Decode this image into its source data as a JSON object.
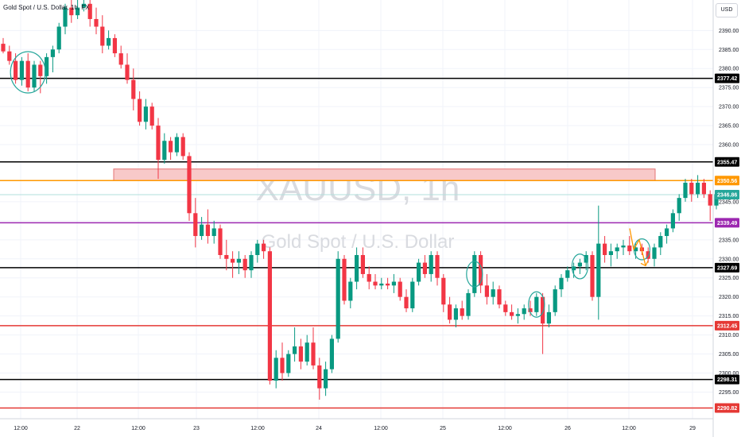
{
  "header": {
    "symbol_line": "Gold Spot / U.S. Dollar, 1h, FX"
  },
  "currency_button": "USD",
  "watermark": {
    "ticker": "XAUUSD, 1h",
    "name": "Gold Spot / U.S. Dollar"
  },
  "chart_data": {
    "type": "candlestick",
    "ylim": [
      2288,
      2398
    ],
    "y_ticks": [
      2295,
      2300,
      2305,
      2310,
      2315,
      2320,
      2325,
      2330,
      2335,
      2340,
      2345,
      2360,
      2365,
      2370,
      2375,
      2380,
      2385,
      2390
    ],
    "x_ticks": [
      "12:00",
      "22",
      "12:00",
      "23",
      "12:00",
      "24",
      "12:00",
      "25",
      "12:00",
      "26",
      "12:00",
      "29"
    ],
    "up_color": "#089981",
    "down_color": "#f23645",
    "candles": [
      [
        2386.5,
        2388.0,
        2384.0,
        2384.5
      ],
      [
        2384.5,
        2386.0,
        2381.0,
        2382.0
      ],
      [
        2382.0,
        2384.0,
        2376.0,
        2377.0
      ],
      [
        2377.0,
        2383.0,
        2375.5,
        2382.0
      ],
      [
        2382.0,
        2384.0,
        2374.0,
        2375.0
      ],
      [
        2375.0,
        2382.0,
        2374.0,
        2381.0
      ],
      [
        2381.0,
        2382.0,
        2373.5,
        2378.0
      ],
      [
        2378.0,
        2384.0,
        2376.0,
        2383.0
      ],
      [
        2383.0,
        2386.0,
        2379.0,
        2385.0
      ],
      [
        2385.0,
        2392.0,
        2384.0,
        2391.0
      ],
      [
        2391.0,
        2397.0,
        2389.0,
        2396.0
      ],
      [
        2396.0,
        2398.0,
        2392.0,
        2394.0
      ],
      [
        2394.0,
        2398.0,
        2393.0,
        2396.0
      ],
      [
        2396.0,
        2398.0,
        2395.0,
        2397.0
      ],
      [
        2397.0,
        2398.0,
        2391.0,
        2393.0
      ],
      [
        2393.0,
        2396.0,
        2389.0,
        2391.0
      ],
      [
        2391.0,
        2394.0,
        2384.0,
        2386.0
      ],
      [
        2386.0,
        2390.0,
        2385.0,
        2388.0
      ],
      [
        2388.0,
        2389.0,
        2383.0,
        2384.0
      ],
      [
        2384.0,
        2386.0,
        2380.0,
        2381.0
      ],
      [
        2381.0,
        2384.0,
        2376.0,
        2377.0
      ],
      [
        2377.0,
        2380.0,
        2369.0,
        2372.0
      ],
      [
        2372.0,
        2374.0,
        2365.0,
        2366.0
      ],
      [
        2366.0,
        2372.0,
        2364.0,
        2370.0
      ],
      [
        2370.0,
        2371.0,
        2364.0,
        2365.0
      ],
      [
        2365.0,
        2367.0,
        2351.0,
        2356.0
      ],
      [
        2356.0,
        2363.0,
        2355.0,
        2361.0
      ],
      [
        2361.0,
        2362.0,
        2356.0,
        2358.0
      ],
      [
        2358.0,
        2363.0,
        2357.0,
        2362.0
      ],
      [
        2362.0,
        2363.0,
        2356.0,
        2357.0
      ],
      [
        2357.0,
        2358.0,
        2340.0,
        2342.0
      ],
      [
        2342.0,
        2346.0,
        2333.0,
        2336.0
      ],
      [
        2336.0,
        2341.0,
        2335.0,
        2339.0
      ],
      [
        2339.0,
        2343.0,
        2334.0,
        2336.0
      ],
      [
        2336.0,
        2340.0,
        2334.0,
        2338.0
      ],
      [
        2338.0,
        2339.0,
        2330.0,
        2331.0
      ],
      [
        2331.0,
        2335.0,
        2327.0,
        2330.0
      ],
      [
        2330.0,
        2332.0,
        2325.0,
        2329.0
      ],
      [
        2329.0,
        2332.0,
        2326.0,
        2330.0
      ],
      [
        2330.0,
        2331.0,
        2325.0,
        2327.0
      ],
      [
        2327.0,
        2332.0,
        2325.0,
        2331.0
      ],
      [
        2331.0,
        2335.0,
        2329.0,
        2334.0
      ],
      [
        2334.0,
        2335.0,
        2330.0,
        2332.0
      ],
      [
        2332.0,
        2333.0,
        2297.0,
        2298.0
      ],
      [
        2298.0,
        2306.0,
        2296.0,
        2304.0
      ],
      [
        2304.0,
        2308.0,
        2298.0,
        2300.0
      ],
      [
        2300.0,
        2306.0,
        2299.0,
        2305.0
      ],
      [
        2305.0,
        2312.0,
        2303.0,
        2307.0
      ],
      [
        2307.0,
        2309.0,
        2301.0,
        2303.0
      ],
      [
        2303.0,
        2310.0,
        2302.0,
        2308.0
      ],
      [
        2308.0,
        2312.0,
        2301.0,
        2302.0
      ],
      [
        2302.0,
        2304.0,
        2293.0,
        2296.0
      ],
      [
        2296.0,
        2303.0,
        2294.0,
        2301.0
      ],
      [
        2301.0,
        2310.0,
        2300.0,
        2309.0
      ],
      [
        2309.0,
        2332.0,
        2308.0,
        2330.0
      ],
      [
        2330.0,
        2331.0,
        2318.0,
        2319.0
      ],
      [
        2319.0,
        2325.0,
        2317.0,
        2324.0
      ],
      [
        2324.0,
        2333.0,
        2322.0,
        2331.0
      ],
      [
        2331.0,
        2333.0,
        2325.0,
        2326.0
      ],
      [
        2326.0,
        2328.0,
        2322.0,
        2324.0
      ],
      [
        2324.0,
        2326.0,
        2322.0,
        2323.0
      ],
      [
        2323.0,
        2325.0,
        2322.0,
        2323.5
      ],
      [
        2323.5,
        2325.0,
        2322.0,
        2323.0
      ],
      [
        2323.0,
        2326.0,
        2321.0,
        2324.0
      ],
      [
        2324.0,
        2325.0,
        2319.0,
        2320.0
      ],
      [
        2320.0,
        2322.0,
        2316.0,
        2317.0
      ],
      [
        2317.0,
        2325.0,
        2316.0,
        2324.0
      ],
      [
        2324.0,
        2330.0,
        2323.0,
        2329.0
      ],
      [
        2329.0,
        2331.0,
        2325.0,
        2326.0
      ],
      [
        2326.0,
        2332.0,
        2324.0,
        2331.0
      ],
      [
        2331.0,
        2332.0,
        2323.0,
        2325.0
      ],
      [
        2325.0,
        2326.0,
        2316.0,
        2318.0
      ],
      [
        2318.0,
        2320.0,
        2313.0,
        2314.0
      ],
      [
        2314.0,
        2318.0,
        2312.0,
        2317.0
      ],
      [
        2317.0,
        2319.0,
        2314.0,
        2315.0
      ],
      [
        2315.0,
        2322.0,
        2314.0,
        2321.0
      ],
      [
        2321.0,
        2332.0,
        2320.0,
        2331.0
      ],
      [
        2331.0,
        2332.0,
        2321.0,
        2323.0
      ],
      [
        2323.0,
        2326.0,
        2318.0,
        2320.0
      ],
      [
        2320.0,
        2324.0,
        2318.0,
        2322.0
      ],
      [
        2322.0,
        2323.0,
        2317.0,
        2318.0
      ],
      [
        2318.0,
        2319.0,
        2315.0,
        2316.0
      ],
      [
        2316.0,
        2318.0,
        2314.0,
        2315.0
      ],
      [
        2315.0,
        2317.0,
        2313.0,
        2315.5
      ],
      [
        2315.5,
        2318.0,
        2314.0,
        2317.0
      ],
      [
        2317.0,
        2319.0,
        2315.0,
        2316.0
      ],
      [
        2316.0,
        2321.0,
        2315.0,
        2320.0
      ],
      [
        2320.0,
        2321.0,
        2305.0,
        2313.0
      ],
      [
        2313.0,
        2318.0,
        2312.0,
        2316.0
      ],
      [
        2316.0,
        2323.0,
        2315.0,
        2322.0
      ],
      [
        2322.0,
        2326.0,
        2320.0,
        2325.0
      ],
      [
        2325.0,
        2328.0,
        2324.0,
        2327.0
      ],
      [
        2327.0,
        2329.0,
        2325.0,
        2328.0
      ],
      [
        2328.0,
        2330.0,
        2326.0,
        2329.0
      ],
      [
        2329.0,
        2332.0,
        2327.0,
        2331.0
      ],
      [
        2331.0,
        2332.0,
        2319.0,
        2320.0
      ],
      [
        2320.0,
        2344.0,
        2314.0,
        2334.0
      ],
      [
        2334.0,
        2336.0,
        2329.0,
        2331.0
      ],
      [
        2331.0,
        2334.0,
        2328.0,
        2332.0
      ],
      [
        2332.0,
        2334.0,
        2330.0,
        2333.0
      ],
      [
        2333.0,
        2335.0,
        2331.0,
        2333.5
      ],
      [
        2333.5,
        2336.0,
        2331.0,
        2332.0
      ],
      [
        2332.0,
        2334.0,
        2330.0,
        2333.0
      ],
      [
        2333.0,
        2334.0,
        2331.0,
        2332.0
      ],
      [
        2332.0,
        2333.0,
        2329.0,
        2330.0
      ],
      [
        2330.0,
        2334.0,
        2328.0,
        2333.0
      ],
      [
        2333.0,
        2337.0,
        2331.0,
        2336.0
      ],
      [
        2336.0,
        2339.0,
        2334.0,
        2338.0
      ],
      [
        2338.0,
        2343.0,
        2337.0,
        2342.0
      ],
      [
        2342.0,
        2347.0,
        2340.0,
        2346.0
      ],
      [
        2346.0,
        2351.0,
        2345.0,
        2350.0
      ],
      [
        2350.0,
        2351.0,
        2345.0,
        2347.0
      ],
      [
        2347.0,
        2352.0,
        2346.0,
        2350.0
      ],
      [
        2350.0,
        2351.0,
        2346.0,
        2347.0
      ],
      [
        2347.0,
        2348.0,
        2340.0,
        2344.0
      ],
      [
        2344.0,
        2348.0,
        2343.0,
        2347.0
      ]
    ],
    "horizontal_levels": [
      {
        "price": "2377.42",
        "value": 2377.42,
        "color": "#000000"
      },
      {
        "price": "2355.47",
        "value": 2355.47,
        "color": "#000000"
      },
      {
        "price": "2350.56",
        "value": 2350.56,
        "color": "#ff9800"
      },
      {
        "price": "2339.49",
        "value": 2339.49,
        "color": "#9c27b0"
      },
      {
        "price": "2327.69",
        "value": 2327.69,
        "color": "#000000"
      },
      {
        "price": "2312.45",
        "value": 2312.45,
        "color": "#e53935"
      },
      {
        "price": "2298.31",
        "value": 2298.31,
        "color": "#000000"
      },
      {
        "price": "2290.82",
        "value": 2290.82,
        "color": "#e53935"
      }
    ],
    "current_price": {
      "price": "2346.86",
      "value": 2346.86,
      "color": "#26a69a"
    },
    "resistance_zone": {
      "from": 2350.6,
      "to": 2353.6,
      "fill": "#f8c9c9",
      "stroke": "#e57373"
    },
    "circled_candles": [
      4,
      76,
      86,
      93,
      103
    ],
    "projection": {
      "color": "#ff9800",
      "points": [
        [
          2338.0
        ],
        [
          2332.5
        ],
        [
          2335.0
        ],
        [
          2328.2
        ]
      ]
    }
  }
}
